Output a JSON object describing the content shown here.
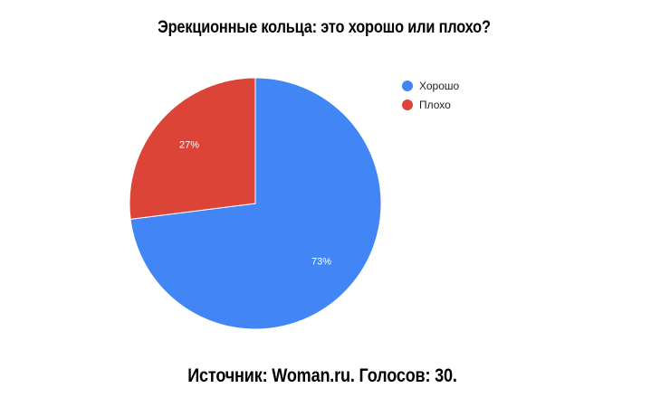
{
  "chart_data": {
    "type": "pie",
    "title": "Эрекционные кольца: это хорошо или плохо?",
    "categories": [
      "Хорошо",
      "Плохо"
    ],
    "values": [
      73,
      27
    ],
    "data_labels": [
      "73%",
      "27%"
    ],
    "colors": [
      "#4285f4",
      "#db4437"
    ],
    "legend_position": "top-right"
  },
  "footer": {
    "source": "Источник: Woman.ru. Голосов: 30."
  }
}
